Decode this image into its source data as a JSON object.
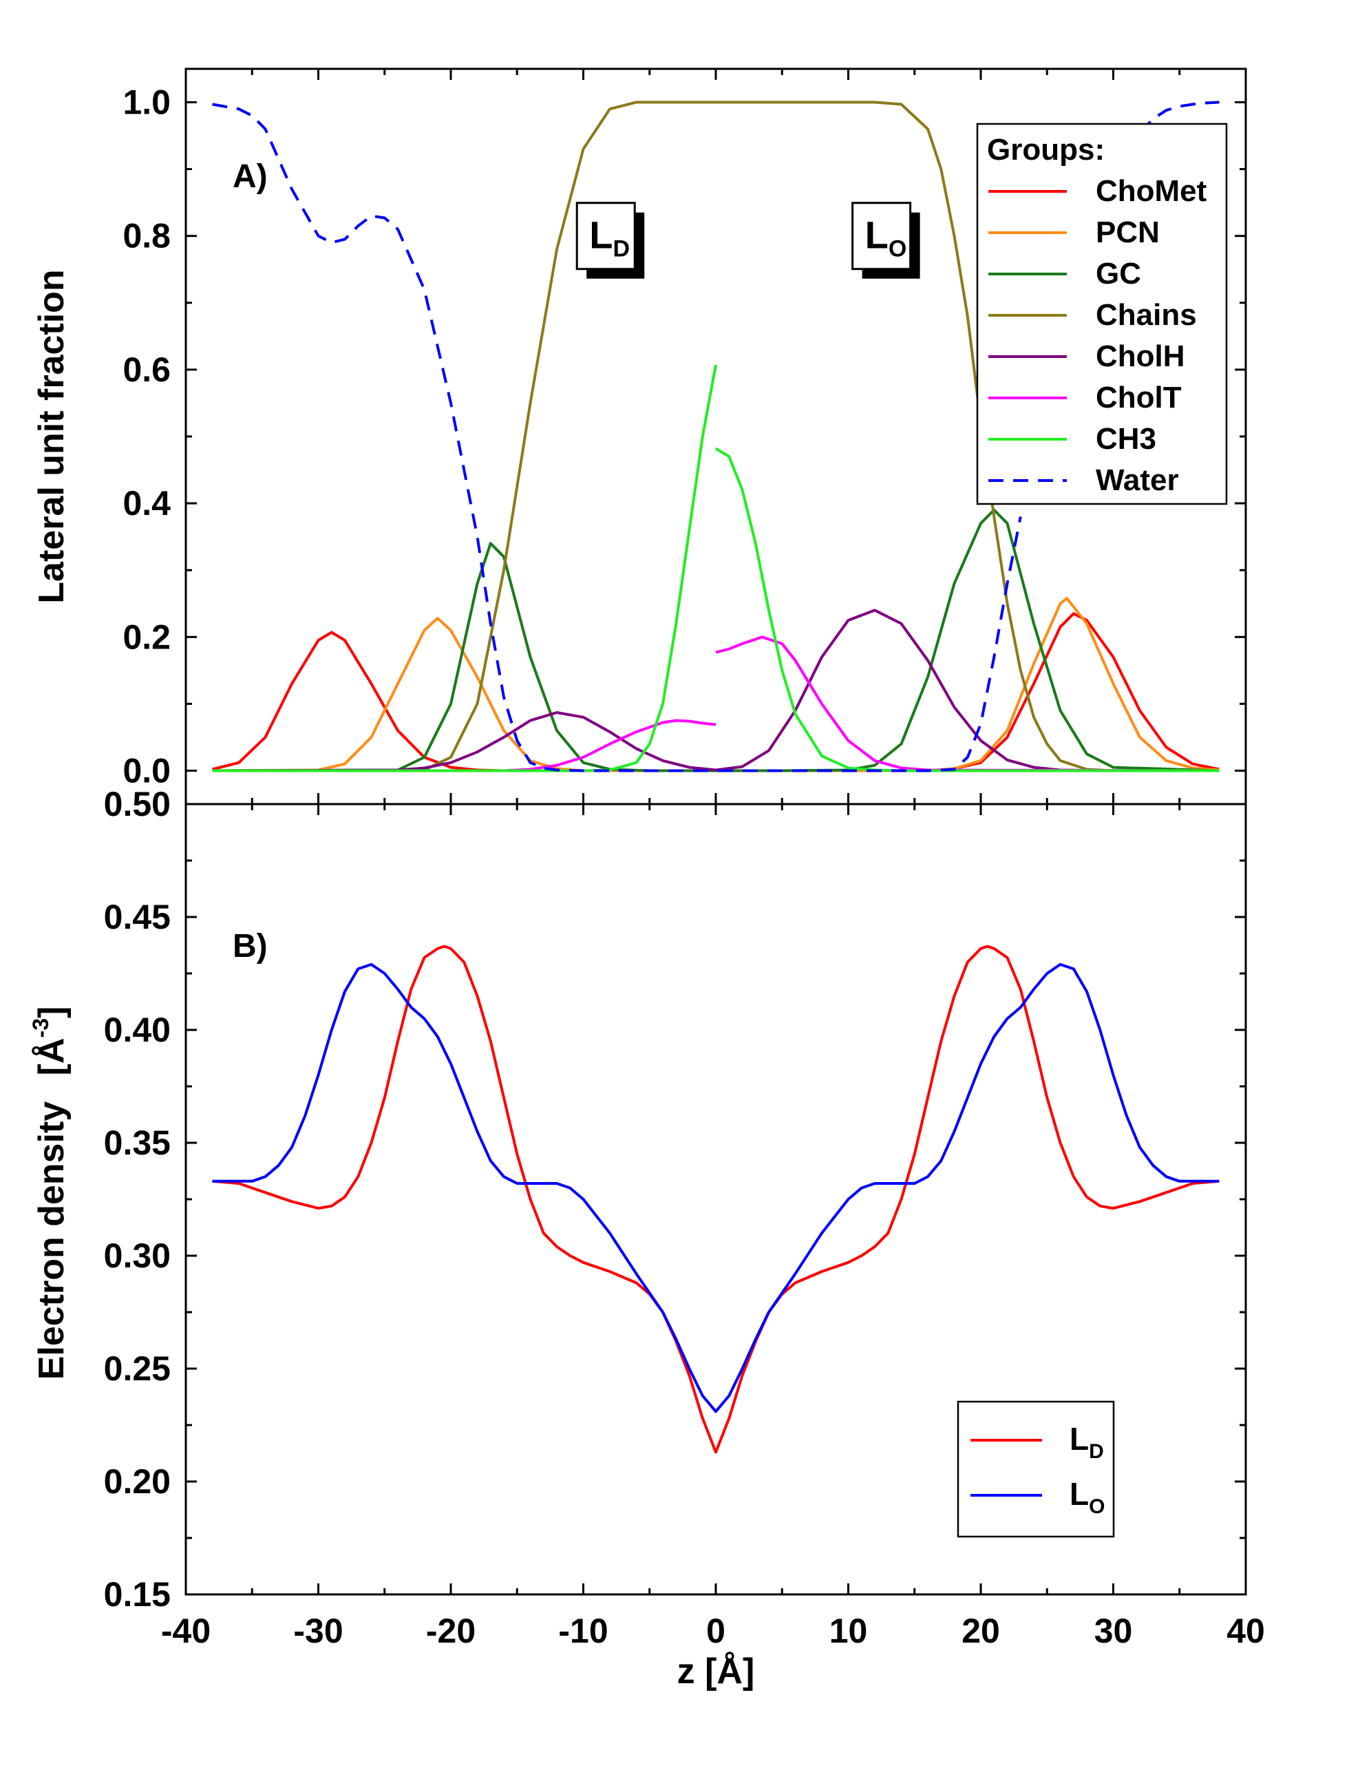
{
  "chart_data": [
    {
      "type": "line",
      "panel_label": "A)",
      "ylabel": "Lateral unit fraction",
      "xlim": [
        -40,
        40
      ],
      "ylim": [
        -0.05,
        1.05
      ],
      "yticks": [
        0.0,
        0.2,
        0.4,
        0.6,
        0.8,
        1.0
      ],
      "ytick_labels": [
        "0.0",
        "0.2",
        "0.4",
        "0.6",
        "0.8",
        "1.0"
      ],
      "region_labels": [
        {
          "main": "L",
          "sub": "D",
          "x": -8.3,
          "y": 0.8
        },
        {
          "main": "L",
          "sub": "O",
          "x": 12.5,
          "y": 0.8
        }
      ],
      "legend_title": "Groups:",
      "legend_position": "top-right",
      "series": [
        {
          "name": "ChoMet",
          "color": "#ff0000",
          "dash": false,
          "x": [
            -38,
            -36,
            -34,
            -32,
            -30,
            -29,
            -28,
            -26,
            -24,
            -22,
            -20,
            -18,
            -16,
            -14,
            -12,
            -10,
            -5,
            0,
            5,
            10,
            16,
            18,
            20,
            22,
            24,
            26,
            27,
            28,
            30,
            32,
            34,
            36,
            38
          ],
          "y": [
            0.002,
            0.012,
            0.05,
            0.13,
            0.195,
            0.207,
            0.195,
            0.13,
            0.06,
            0.02,
            0.005,
            0.001,
            0,
            0,
            0,
            0,
            0,
            0,
            0,
            0,
            0,
            0.003,
            0.012,
            0.05,
            0.13,
            0.215,
            0.235,
            0.225,
            0.17,
            0.09,
            0.035,
            0.01,
            0.002
          ]
        },
        {
          "name": "PCN",
          "color": "#ff8c1a",
          "dash": false,
          "x": [
            -38,
            -30,
            -28,
            -26,
            -24,
            -22,
            -21,
            -20,
            -18,
            -16,
            -14,
            -12,
            -10,
            -5,
            0,
            5,
            10,
            16,
            18,
            20,
            22,
            24,
            26,
            26.5,
            28,
            30,
            32,
            34,
            36,
            38
          ],
          "y": [
            0,
            0.001,
            0.01,
            0.05,
            0.13,
            0.21,
            0.228,
            0.21,
            0.14,
            0.06,
            0.015,
            0.003,
            0,
            0,
            0,
            0,
            0,
            0,
            0.003,
            0.015,
            0.06,
            0.16,
            0.25,
            0.258,
            0.22,
            0.13,
            0.05,
            0.015,
            0.004,
            0.001
          ]
        },
        {
          "name": "GC",
          "color": "#1a7a1a",
          "dash": false,
          "x": [
            -38,
            -24,
            -22,
            -20,
            -18,
            -17,
            -16,
            -14,
            -12,
            -10,
            -8,
            -5,
            0,
            5,
            10,
            12,
            14,
            16,
            18,
            20,
            21,
            22,
            24,
            26,
            28,
            30,
            38
          ],
          "y": [
            0,
            0.001,
            0.02,
            0.1,
            0.28,
            0.34,
            0.32,
            0.17,
            0.06,
            0.012,
            0.002,
            0,
            0,
            0,
            0.001,
            0.008,
            0.04,
            0.14,
            0.28,
            0.37,
            0.39,
            0.37,
            0.22,
            0.09,
            0.025,
            0.005,
            0
          ]
        },
        {
          "name": "Chains",
          "color": "#8b7a1a",
          "dash": false,
          "x": [
            -38,
            -22,
            -20,
            -18,
            -16,
            -14,
            -12,
            -10,
            -8,
            -6,
            -4,
            0,
            4,
            8,
            12,
            14,
            16,
            17,
            18,
            19,
            20,
            21,
            22,
            23,
            24,
            25,
            26,
            28,
            30,
            38
          ],
          "y": [
            0,
            0.001,
            0.02,
            0.1,
            0.3,
            0.55,
            0.78,
            0.93,
            0.99,
            1.0,
            1.0,
            1.0,
            1.0,
            1.0,
            1.0,
            0.997,
            0.96,
            0.9,
            0.8,
            0.68,
            0.52,
            0.38,
            0.25,
            0.15,
            0.08,
            0.04,
            0.015,
            0.002,
            0,
            0
          ]
        },
        {
          "name": "CholH",
          "color": "#800080",
          "dash": false,
          "x": [
            -38,
            -24,
            -22,
            -20,
            -18,
            -16,
            -14,
            -12,
            -10,
            -8,
            -6,
            -4,
            -2,
            0,
            2,
            4,
            6,
            8,
            10,
            12,
            14,
            16,
            18,
            20,
            22,
            24,
            26,
            30,
            38
          ],
          "y": [
            0,
            0.001,
            0.004,
            0.012,
            0.028,
            0.05,
            0.075,
            0.087,
            0.08,
            0.058,
            0.033,
            0.015,
            0.005,
            0.001,
            0.006,
            0.03,
            0.09,
            0.17,
            0.225,
            0.24,
            0.22,
            0.165,
            0.095,
            0.045,
            0.016,
            0.005,
            0.001,
            0,
            0
          ]
        },
        {
          "name": "CholT",
          "color": "#ff00ff",
          "dash": false,
          "x": [
            -38,
            -16,
            -14,
            -12,
            -10,
            -8,
            -6,
            -4,
            -3,
            -2,
            -1,
            0,
            "break",
            0,
            1,
            2,
            3.5,
            5,
            6,
            8,
            10,
            12,
            14,
            16,
            38
          ],
          "y": [
            0,
            0,
            0.002,
            0.008,
            0.02,
            0.04,
            0.058,
            0.072,
            0.075,
            0.074,
            0.071,
            0.069,
            "break",
            0.177,
            0.182,
            0.19,
            0.2,
            0.19,
            0.165,
            0.1,
            0.045,
            0.015,
            0.004,
            0.001,
            0
          ]
        },
        {
          "name": "CH3",
          "color": "#22ee22",
          "dash": false,
          "x": [
            -38,
            -10,
            -8,
            -6,
            -5,
            -4,
            -3,
            -2,
            -1,
            0,
            "break",
            0,
            1,
            2,
            3,
            4,
            5,
            6,
            8,
            10,
            12,
            14,
            38
          ],
          "y": [
            0,
            0,
            0.001,
            0.012,
            0.04,
            0.1,
            0.22,
            0.36,
            0.5,
            0.607,
            "break",
            0.482,
            0.47,
            0.42,
            0.34,
            0.24,
            0.15,
            0.085,
            0.022,
            0.004,
            0.001,
            0,
            0
          ]
        },
        {
          "name": "Water",
          "color": "#0000ff",
          "dash": true,
          "x": [
            -38,
            -36,
            -35,
            -34,
            -32,
            -30,
            -29,
            -28,
            -27,
            -26,
            -25,
            -24,
            -22,
            -20,
            -18,
            -17,
            -16,
            -15,
            -14,
            -13,
            -12,
            -10,
            0,
            10,
            16,
            18,
            19,
            20,
            21,
            22,
            23,
            "break",
            32,
            33,
            34,
            35,
            36,
            37,
            38
          ],
          "y": [
            0.997,
            0.99,
            0.98,
            0.96,
            0.87,
            0.8,
            0.79,
            0.795,
            0.815,
            0.83,
            0.827,
            0.81,
            0.72,
            0.55,
            0.35,
            0.22,
            0.11,
            0.045,
            0.012,
            0.004,
            0.001,
            0,
            0,
            0,
            0,
            0.002,
            0.02,
            0.07,
            0.17,
            0.28,
            0.38,
            "break",
            0.955,
            0.975,
            0.988,
            0.994,
            0.997,
            0.999,
            1.0
          ]
        }
      ]
    },
    {
      "type": "line",
      "panel_label": "B)",
      "ylabel": "Electron density",
      "ylabel_unit_main": "[Å",
      "ylabel_unit_sup": "-3",
      "ylabel_unit_end": "]",
      "xlabel": "z   [Å]",
      "xlim": [
        -40,
        40
      ],
      "ylim": [
        0.15,
        0.5
      ],
      "xticks": [
        -40,
        -30,
        -20,
        -10,
        0,
        10,
        20,
        30,
        40
      ],
      "xtick_labels": [
        "-40",
        "-30",
        "-20",
        "-10",
        "0",
        "10",
        "20",
        "30",
        "40"
      ],
      "yticks": [
        0.15,
        0.2,
        0.25,
        0.3,
        0.35,
        0.4,
        0.45,
        0.5
      ],
      "ytick_labels": [
        "0.15",
        "0.20",
        "0.25",
        "0.30",
        "0.35",
        "0.40",
        "0.45",
        "0.50"
      ],
      "legend_position": "bottom-right",
      "series": [
        {
          "name": "L",
          "sub": "D",
          "color": "#ff0000",
          "dash": false,
          "x": [
            -38,
            -36,
            -34,
            -32,
            -30,
            -29,
            -28,
            -27,
            -26,
            -25,
            -24,
            -23,
            -22,
            -21,
            -20.5,
            -20,
            -19,
            -18,
            -17,
            -16,
            -15,
            -14,
            -13,
            -12,
            -11,
            -10,
            -8,
            -6,
            -5,
            -4,
            -3,
            -2,
            -1,
            0,
            1,
            2,
            3,
            4,
            5,
            6,
            8,
            10,
            11,
            12,
            13,
            14,
            15,
            16,
            17,
            18,
            19,
            20,
            20.5,
            21,
            22,
            23,
            24,
            25,
            26,
            27,
            28,
            29,
            30,
            32,
            34,
            36,
            38
          ],
          "y": [
            0.333,
            0.332,
            0.328,
            0.324,
            0.321,
            0.322,
            0.326,
            0.335,
            0.35,
            0.37,
            0.395,
            0.418,
            0.432,
            0.436,
            0.437,
            0.436,
            0.43,
            0.415,
            0.395,
            0.37,
            0.345,
            0.325,
            0.31,
            0.304,
            0.3,
            0.297,
            0.293,
            0.288,
            0.283,
            0.275,
            0.262,
            0.247,
            0.228,
            0.213,
            0.228,
            0.247,
            0.262,
            0.275,
            0.283,
            0.288,
            0.293,
            0.297,
            0.3,
            0.304,
            0.31,
            0.325,
            0.345,
            0.37,
            0.395,
            0.415,
            0.43,
            0.436,
            0.437,
            0.436,
            0.432,
            0.418,
            0.395,
            0.37,
            0.35,
            0.335,
            0.326,
            0.322,
            0.321,
            0.324,
            0.328,
            0.332,
            0.333
          ]
        },
        {
          "name": "L",
          "sub": "O",
          "color": "#0000ff",
          "dash": false,
          "x": [
            -38,
            -35,
            -34,
            -33,
            -32,
            -31,
            -30,
            -29,
            -28,
            -27,
            -26,
            -25,
            -24,
            -23,
            -22,
            -21,
            -20,
            -19,
            -18,
            -17,
            -16,
            -15,
            -12,
            -11,
            -10,
            -8,
            -6,
            -4,
            -3,
            -2,
            -1,
            0,
            1,
            2,
            3,
            4,
            6,
            8,
            10,
            11,
            12,
            15,
            16,
            17,
            18,
            19,
            20,
            21,
            22,
            23,
            24,
            25,
            26,
            27,
            28,
            29,
            30,
            31,
            32,
            33,
            34,
            35,
            38
          ],
          "y": [
            0.333,
            0.333,
            0.335,
            0.34,
            0.348,
            0.362,
            0.38,
            0.4,
            0.417,
            0.427,
            0.429,
            0.425,
            0.418,
            0.41,
            0.405,
            0.397,
            0.385,
            0.37,
            0.355,
            0.342,
            0.335,
            0.332,
            0.332,
            0.33,
            0.325,
            0.31,
            0.292,
            0.275,
            0.263,
            0.25,
            0.238,
            0.231,
            0.238,
            0.25,
            0.263,
            0.275,
            0.292,
            0.31,
            0.325,
            0.33,
            0.332,
            0.332,
            0.335,
            0.342,
            0.355,
            0.37,
            0.385,
            0.397,
            0.405,
            0.41,
            0.418,
            0.425,
            0.429,
            0.427,
            0.417,
            0.4,
            0.38,
            0.362,
            0.348,
            0.34,
            0.335,
            0.333,
            0.333
          ]
        }
      ]
    }
  ]
}
